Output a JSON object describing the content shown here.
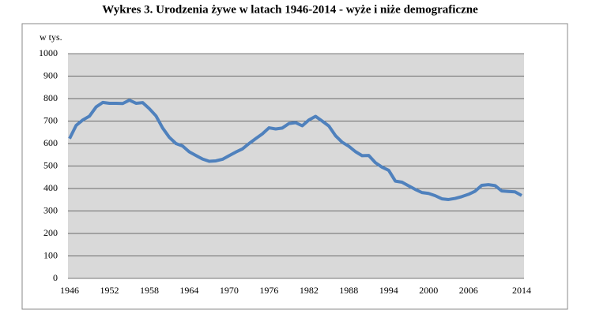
{
  "chart_data": {
    "type": "line",
    "title": "Wykres 3. Urodzenia żywe w latach 1946-2014 - wyże i niże demograficzne",
    "y_label": "w tys.",
    "x": [
      1946,
      1947,
      1948,
      1949,
      1950,
      1951,
      1952,
      1953,
      1954,
      1955,
      1956,
      1957,
      1958,
      1959,
      1960,
      1961,
      1962,
      1963,
      1964,
      1965,
      1966,
      1967,
      1968,
      1969,
      1970,
      1971,
      1972,
      1973,
      1974,
      1975,
      1976,
      1977,
      1978,
      1979,
      1980,
      1981,
      1982,
      1983,
      1984,
      1985,
      1986,
      1987,
      1988,
      1989,
      1990,
      1991,
      1992,
      1993,
      1994,
      1995,
      1996,
      1997,
      1998,
      1999,
      2000,
      2001,
      2002,
      2003,
      2004,
      2005,
      2006,
      2007,
      2008,
      2009,
      2010,
      2011,
      2012,
      2013,
      2014
    ],
    "series": [
      {
        "color": "#4f81bd",
        "values": [
          622,
          681,
          705,
          722,
          763,
          783,
          779,
          779,
          778,
          793,
          779,
          782,
          755,
          723,
          669,
          628,
          600,
          589,
          563,
          547,
          531,
          521,
          523,
          530,
          546,
          562,
          576,
          600,
          622,
          643,
          670,
          665,
          669,
          689,
          693,
          679,
          705,
          721,
          700,
          678,
          635,
          606,
          588,
          564,
          546,
          547,
          515,
          495,
          481,
          433,
          428,
          412,
          396,
          382,
          378,
          368,
          354,
          351,
          356,
          364,
          374,
          388,
          414,
          417,
          413,
          389,
          387,
          385,
          369
        ]
      }
    ],
    "xlim": [
      1946,
      2014
    ],
    "xticks": [
      1946,
      1952,
      1958,
      1964,
      1970,
      1976,
      1982,
      1988,
      1994,
      2000,
      2006,
      2014
    ],
    "ylim": [
      0,
      1000
    ],
    "yticks": [
      0,
      100,
      200,
      300,
      400,
      500,
      600,
      700,
      800,
      900,
      1000
    ],
    "grid": true,
    "background": "#d9d9d9"
  }
}
